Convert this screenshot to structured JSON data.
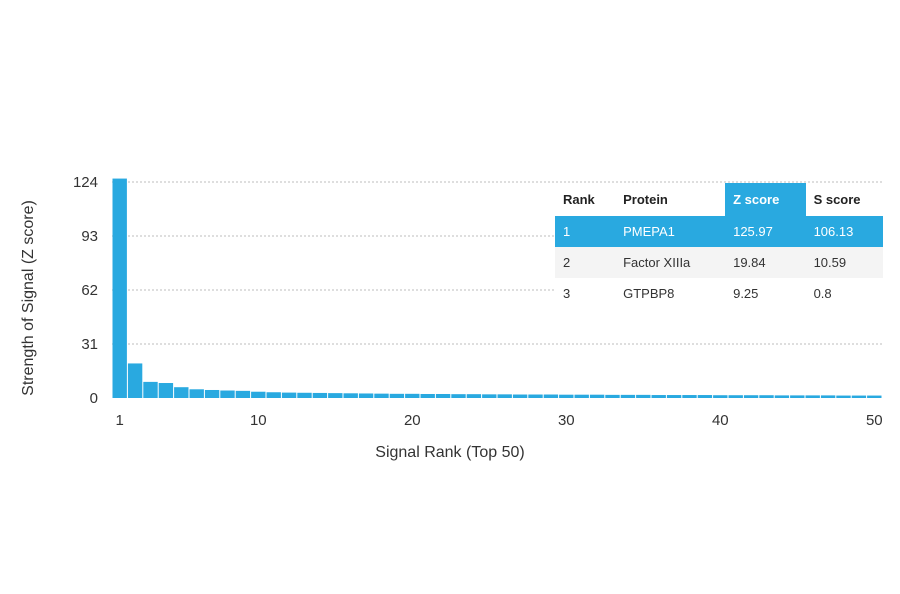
{
  "chart_data": {
    "type": "bar",
    "xlabel": "Signal Rank (Top 50)",
    "ylabel": "Strength of Signal (Z score)",
    "ylim": [
      0,
      124
    ],
    "yticks": [
      "124",
      "93",
      "62",
      "31",
      "0"
    ],
    "yticks_values": [
      124,
      93,
      62,
      31,
      0
    ],
    "xticks": [
      "1",
      "10",
      "20",
      "30",
      "40",
      "50"
    ],
    "xticks_values": [
      1,
      10,
      20,
      30,
      40,
      50
    ],
    "grid": "horizontal dotted",
    "bar_color": "#29a9e0",
    "ranks": [
      1,
      2,
      3,
      4,
      5,
      6,
      7,
      8,
      9,
      10,
      11,
      12,
      13,
      14,
      15,
      16,
      17,
      18,
      19,
      20,
      21,
      22,
      23,
      24,
      25,
      26,
      27,
      28,
      29,
      30,
      31,
      32,
      33,
      34,
      35,
      36,
      37,
      38,
      39,
      40,
      41,
      42,
      43,
      44,
      45,
      46,
      47,
      48,
      49,
      50
    ],
    "values": [
      125.97,
      19.84,
      9.25,
      8.6,
      6.2,
      5.0,
      4.6,
      4.3,
      4.1,
      3.6,
      3.3,
      3.1,
      3.0,
      2.9,
      2.8,
      2.7,
      2.6,
      2.5,
      2.4,
      2.4,
      2.3,
      2.3,
      2.2,
      2.2,
      2.1,
      2.1,
      2.0,
      2.0,
      2.0,
      1.9,
      1.9,
      1.9,
      1.8,
      1.8,
      1.8,
      1.7,
      1.7,
      1.7,
      1.7,
      1.6,
      1.6,
      1.6,
      1.6,
      1.5,
      1.5,
      1.5,
      1.5,
      1.4,
      1.4,
      1.4
    ]
  },
  "table": {
    "headers": {
      "rank": "Rank",
      "protein": "Protein",
      "z": "Z score",
      "s": "S score"
    },
    "rows": [
      {
        "rank": "1",
        "protein": "PMEPA1",
        "z": "125.97",
        "s": "106.13"
      },
      {
        "rank": "2",
        "protein": "Factor XIIIa",
        "z": "19.84",
        "s": "10.59"
      },
      {
        "rank": "3",
        "protein": "GTPBP8",
        "z": "9.25",
        "s": "0.8"
      }
    ],
    "highlight_color": "#29a9e0"
  }
}
